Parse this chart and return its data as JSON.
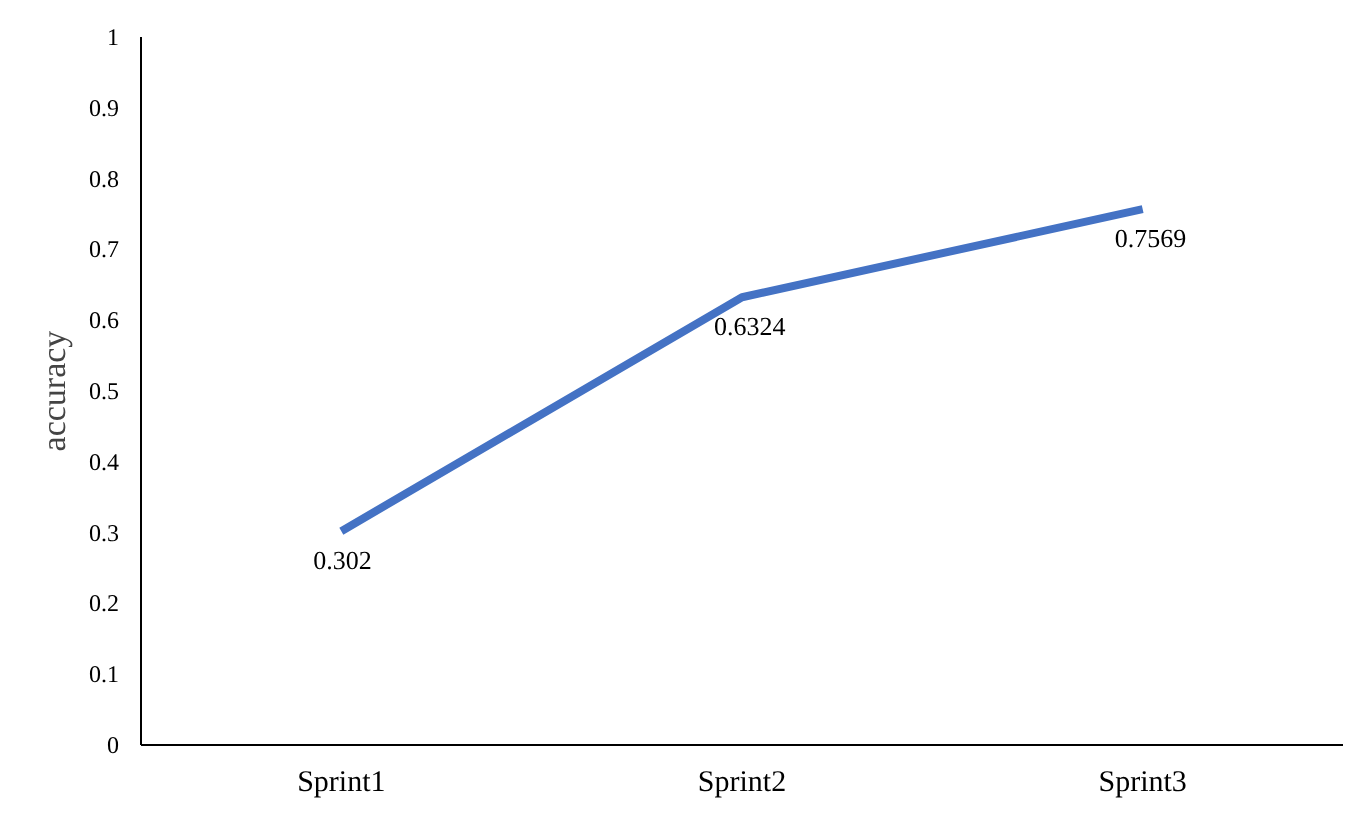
{
  "chart_data": {
    "type": "line",
    "ylabel": "accuracy",
    "categories": [
      "Sprint1",
      "Sprint2",
      "Sprint3"
    ],
    "series": [
      {
        "color": "#4472c4",
        "values": [
          0.302,
          0.6324,
          0.7569
        ]
      }
    ],
    "ylim": [
      0,
      1
    ],
    "yticks": [
      0,
      0.1,
      0.2,
      0.3,
      0.4,
      0.5,
      0.6,
      0.7,
      0.8,
      0.9,
      1
    ],
    "grid": false,
    "data_labels": true,
    "line_style": "solid",
    "marker": "none"
  }
}
